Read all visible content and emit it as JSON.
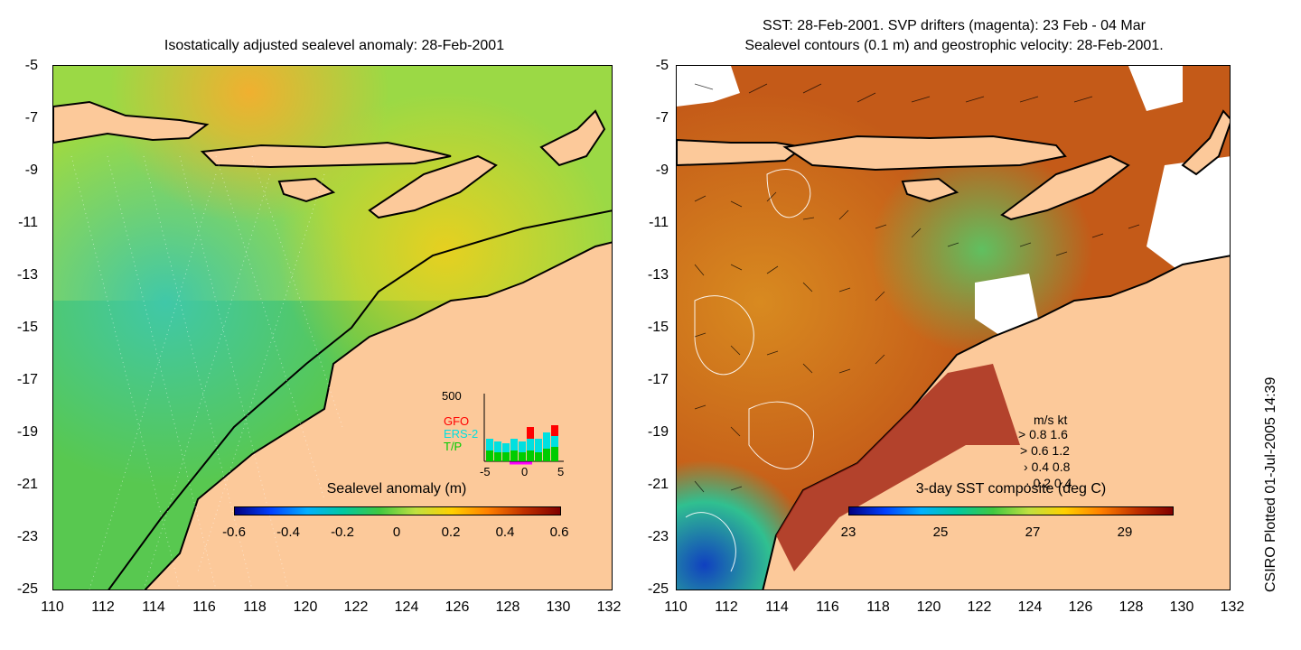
{
  "left_panel": {
    "title": "Isostatically adjusted sealevel anomaly: 28-Feb-2001",
    "colorbar": {
      "title": "Sealevel anomaly (m)",
      "labels": [
        "-0.6",
        "-0.4",
        "-0.2",
        "0",
        "0.2",
        "0.4",
        "0.6"
      ]
    },
    "inset": {
      "ymax_label": "500",
      "series": [
        {
          "name": "GFO",
          "color": "#ff0000"
        },
        {
          "name": "ERS-2",
          "color": "#00e0e0"
        },
        {
          "name": "T/P",
          "color": "#00cc00"
        }
      ],
      "x_labels": [
        "-5",
        "0",
        "5"
      ]
    }
  },
  "right_panel": {
    "title_line1": "SST: 28-Feb-2001. SVP drifters (magenta): 23 Feb - 04 Mar",
    "title_line2": "Sealevel contours (0.1 m) and geostrophic velocity: 28-Feb-2001.",
    "colorbar": {
      "title": "3-day SST composite (deg C)",
      "labels": [
        "23",
        "25",
        "27",
        "29"
      ]
    },
    "velocity_legend": {
      "header": "m/s  kt",
      "rows": [
        "0.8  1.6",
        "0.6  1.2",
        "0.4  0.8",
        "0.2  0.4"
      ]
    }
  },
  "axes": {
    "y_labels": [
      "-5",
      "-7",
      "-9",
      "-11",
      "-13",
      "-15",
      "-17",
      "-19",
      "-21",
      "-23",
      "-25"
    ],
    "x_labels": [
      "110",
      "112",
      "114",
      "116",
      "118",
      "120",
      "122",
      "124",
      "126",
      "128",
      "130",
      "132"
    ]
  },
  "credit": "CSIRO Plotted 01-Jul-2005 14:39",
  "colors": {
    "land": "#fcc99a",
    "ocean_left": "#55cc55",
    "ocean_right": "#c4551a"
  }
}
